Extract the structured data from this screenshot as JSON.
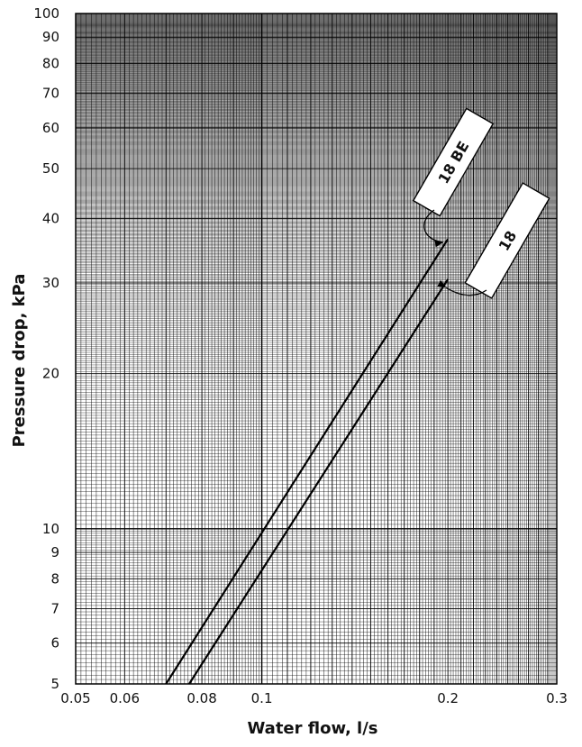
{
  "chart_data": {
    "type": "line",
    "title": "",
    "xlabel": "Water flow, l/s",
    "ylabel": "Pressure drop, kPa",
    "x_scale": "log",
    "y_scale": "log",
    "xlim": [
      0.05,
      0.3
    ],
    "ylim": [
      5,
      100
    ],
    "grid": true,
    "x_ticks": [
      {
        "value": 0.05,
        "label": "0.05"
      },
      {
        "value": 0.06,
        "label": "0.06"
      },
      {
        "value": 0.08,
        "label": "0.08"
      },
      {
        "value": 0.1,
        "label": "0.1"
      },
      {
        "value": 0.2,
        "label": "0.2"
      },
      {
        "value": 0.3,
        "label": "0.3"
      }
    ],
    "y_ticks": [
      {
        "value": 5,
        "label": "5"
      },
      {
        "value": 6,
        "label": "6"
      },
      {
        "value": 7,
        "label": "7"
      },
      {
        "value": 8,
        "label": "8"
      },
      {
        "value": 9,
        "label": "9"
      },
      {
        "value": 10,
        "label": "10"
      },
      {
        "value": 20,
        "label": "20"
      },
      {
        "value": 30,
        "label": "30"
      },
      {
        "value": 40,
        "label": "40"
      },
      {
        "value": 50,
        "label": "50"
      },
      {
        "value": 60,
        "label": "60"
      },
      {
        "value": 70,
        "label": "70"
      },
      {
        "value": 80,
        "label": "80"
      },
      {
        "value": 90,
        "label": "90"
      },
      {
        "value": 100,
        "label": "100"
      }
    ],
    "series": [
      {
        "name": "18 BE",
        "x": [
          0.07,
          0.2
        ],
        "y": [
          5,
          36.5
        ]
      },
      {
        "name": "18",
        "x": [
          0.0763,
          0.2
        ],
        "y": [
          5,
          30.5
        ]
      }
    ]
  }
}
